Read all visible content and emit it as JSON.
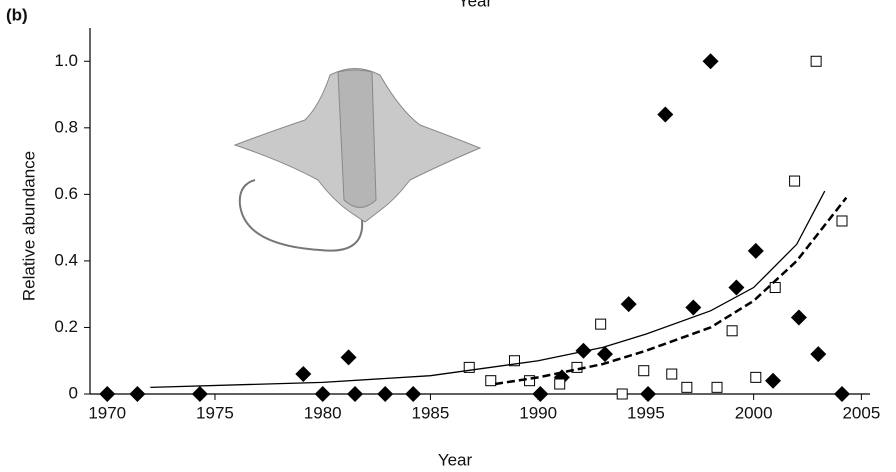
{
  "panel_label": "(b)",
  "top_label": "Year",
  "chart_data": {
    "type": "scatter",
    "xlabel": "Year",
    "ylabel": "Relative abundance",
    "xlim": [
      1969.2,
      2005.4
    ],
    "xticks": [
      1970,
      1975,
      1980,
      1985,
      1990,
      1995,
      2000,
      2005
    ],
    "ylim": [
      0,
      1.1
    ],
    "yticks": [
      0,
      0.2,
      0.4,
      0.6,
      0.8,
      {
        "value": 1,
        "label": "1.0"
      }
    ],
    "series": [
      {
        "marker": "diamond",
        "color": "#000000",
        "x": [
          1970,
          1971.4,
          1974.3,
          1979.1,
          1980,
          1981.2,
          1981.5,
          1982.9,
          1984.2,
          1990.1,
          1991.1,
          1992.1,
          1993.1,
          1994.2,
          1995.1,
          1995.9,
          1997.2,
          1998,
          1999.2,
          2000.1,
          2000.9,
          2002.1,
          2003,
          2004.1
        ],
        "values": [
          0,
          0,
          0,
          0.06,
          0,
          0.11,
          0,
          0,
          0,
          0,
          0.05,
          0.13,
          0.12,
          0.27,
          0,
          0.84,
          0.26,
          1.0,
          0.32,
          0.43,
          0.04,
          0.23,
          0.12,
          0
        ]
      },
      {
        "marker": "square",
        "color": "#000000",
        "x": [
          1986.8,
          1987.8,
          1988.9,
          1989.6,
          1991,
          1991.8,
          1992.9,
          1993.9,
          1994.9,
          1996.2,
          1996.9,
          1998.3,
          1999,
          2000.1,
          2001,
          2001.9,
          2002.9,
          2004.1
        ],
        "values": [
          0.08,
          0.04,
          0.1,
          0.04,
          0.03,
          0.08,
          0.21,
          0,
          0.07,
          0.06,
          0.02,
          0.02,
          0.19,
          0.05,
          0.32,
          0.64,
          1.0,
          0.52
        ]
      },
      {
        "line": "solid",
        "color": "#000000",
        "x": [
          1972,
          1980,
          1985,
          1990,
          1993,
          1995,
          1998,
          2000,
          2002,
          2003.3
        ],
        "values": [
          0.02,
          0.035,
          0.055,
          0.1,
          0.14,
          0.18,
          0.25,
          0.32,
          0.45,
          0.61
        ]
      },
      {
        "line": "dashed",
        "color": "#000000",
        "x": [
          1988,
          1990,
          1993,
          1995,
          1998,
          2000,
          2002,
          2004.3
        ],
        "values": [
          0.03,
          0.05,
          0.09,
          0.13,
          0.2,
          0.28,
          0.4,
          0.59
        ]
      }
    ]
  }
}
